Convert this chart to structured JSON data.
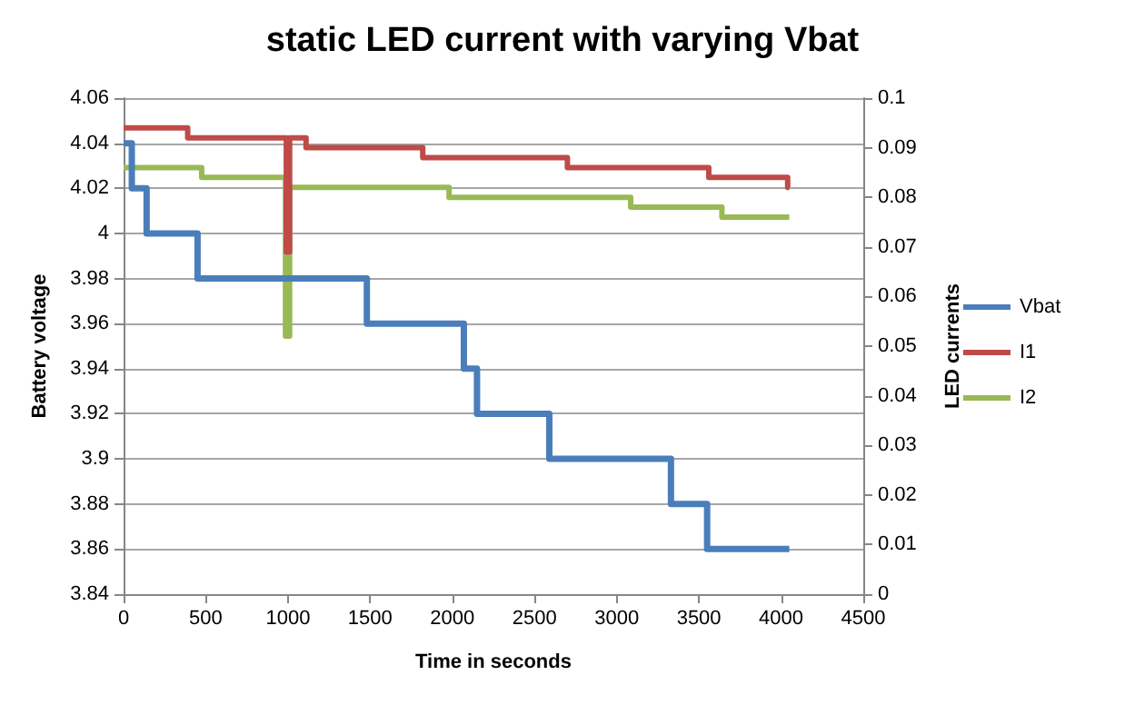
{
  "chart_data": {
    "type": "step",
    "title": "static LED current with varying Vbat",
    "xlabel": "Time in seconds",
    "ylabel": "Battery voltage",
    "y2label": "LED currents",
    "xlim": [
      0,
      4500
    ],
    "xticks": [
      0,
      500,
      1000,
      1500,
      2000,
      2500,
      3000,
      3500,
      4000,
      4500
    ],
    "ylim": [
      3.84,
      4.06
    ],
    "yticks": [
      3.84,
      3.86,
      3.88,
      3.9,
      3.92,
      3.94,
      3.96,
      3.98,
      4,
      4.02,
      4.04,
      4.06
    ],
    "y2lim": [
      0,
      0.1
    ],
    "y2ticks": [
      0,
      0.01,
      0.02,
      0.03,
      0.04,
      0.05,
      0.06,
      0.07,
      0.08,
      0.09,
      0.1
    ],
    "grid": "y",
    "legend": "right",
    "marker": "none",
    "series": [
      {
        "name": "Vbat",
        "color": "#4a7ebb",
        "x": [
          0,
          50,
          140,
          450,
          1480,
          2070,
          2150,
          2590,
          3330,
          3550,
          4050
        ],
        "values": [
          4.04,
          4.02,
          4.0,
          3.98,
          3.96,
          3.94,
          3.92,
          3.9,
          3.88,
          3.86,
          3.86
        ]
      },
      {
        "name": "I1",
        "color": "#be4b48",
        "axis": "y2",
        "x": [
          0,
          390,
          990,
          1010,
          1110,
          1820,
          2700,
          3560,
          4040,
          4050
        ],
        "values": [
          0.094,
          0.092,
          0.069,
          0.092,
          0.09,
          0.088,
          0.086,
          0.084,
          0.082,
          0.082
        ]
      },
      {
        "name": "I2",
        "color": "#98b954",
        "axis": "y2",
        "x": [
          0,
          475,
          985,
          1010,
          1980,
          3085,
          3640,
          4050
        ],
        "values": [
          0.086,
          0.084,
          0.052,
          0.082,
          0.08,
          0.078,
          0.076,
          0.076
        ]
      }
    ]
  }
}
